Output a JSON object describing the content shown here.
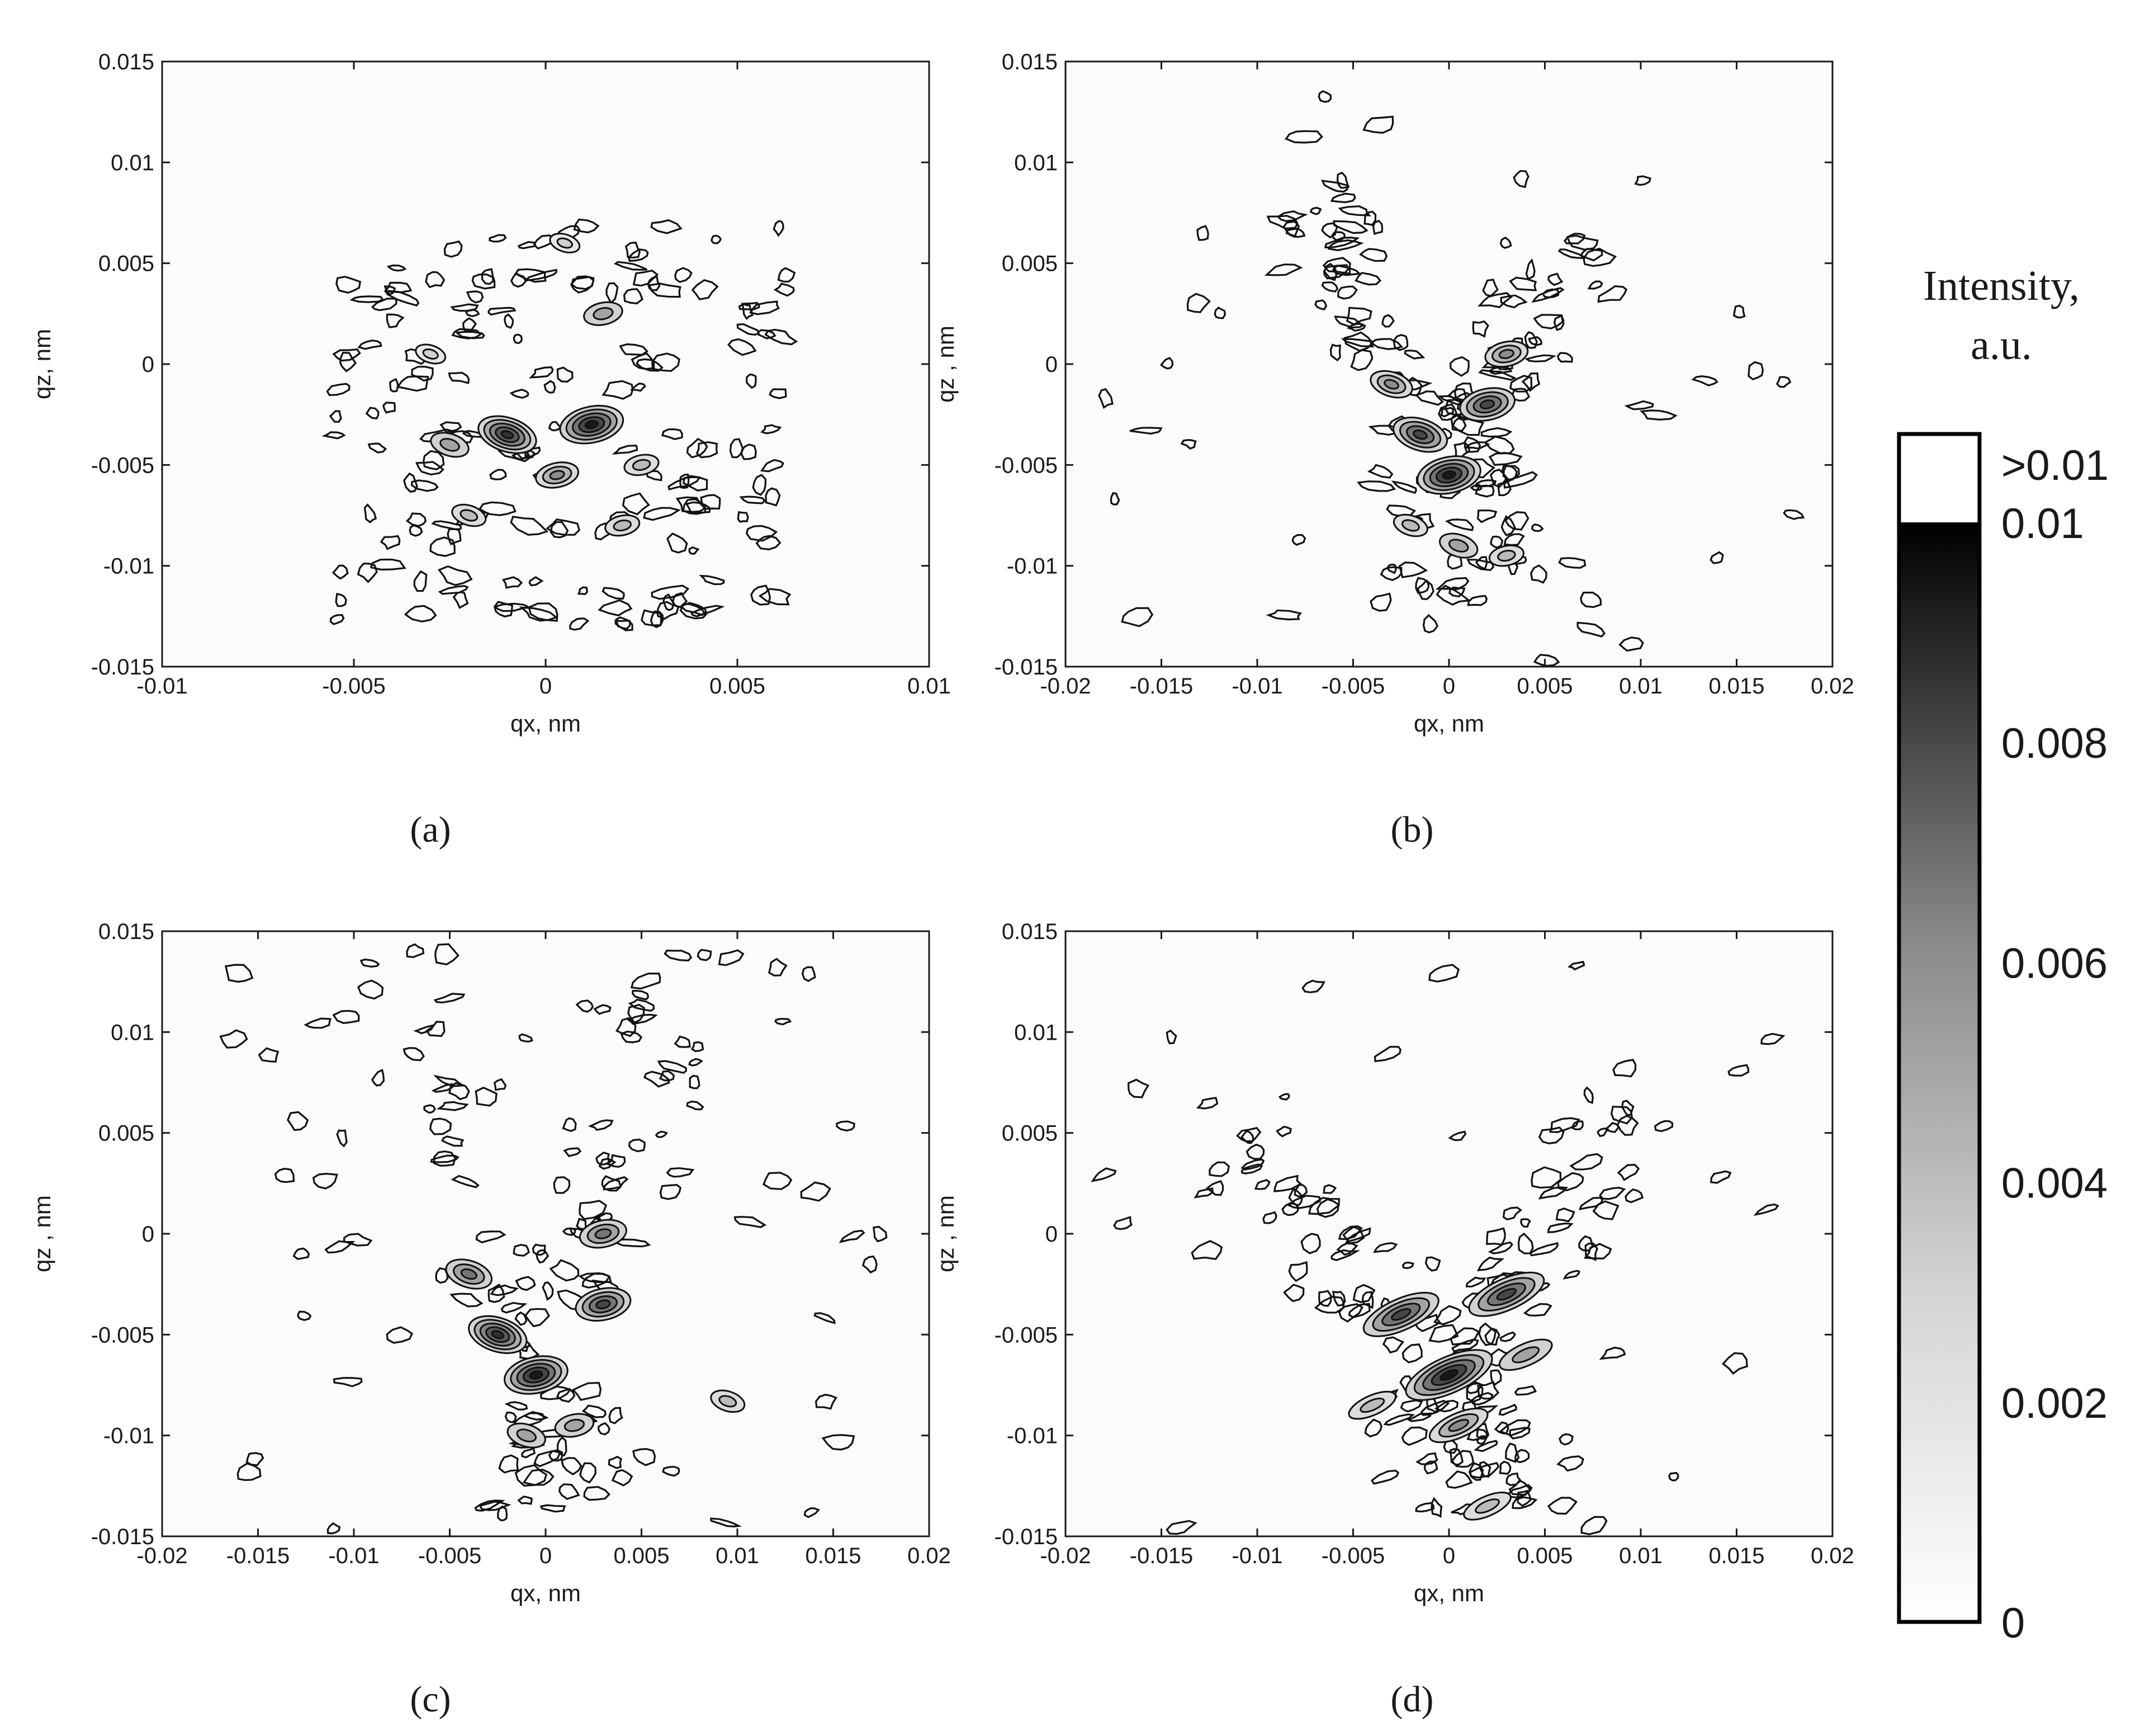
{
  "chart_data": [
    {
      "type": "contour",
      "panel_label": "(a)",
      "xlabel": "qx, nm",
      "ylabel": "qz, nm",
      "xlim": [
        -0.01,
        0.01
      ],
      "ylim": [
        -0.015,
        0.015
      ],
      "x_ticks": [
        "-0.01",
        "-0.005",
        "0",
        "0.005",
        "0.01"
      ],
      "y_ticks": [
        "-0.015",
        "-0.01",
        "-0.005",
        "0",
        "0.005",
        "0.01",
        "0.015"
      ],
      "grid": false,
      "pattern": "diffuse cloud centred near (0.001, -0.004), strongest intensity near qx 0.001, qz -0.003",
      "peaks": [
        {
          "x": 0.0012,
          "y": -0.003,
          "intensity": 0.01
        },
        {
          "x": -0.001,
          "y": -0.0035,
          "intensity": 0.009
        },
        {
          "x": 0.0003,
          "y": -0.0055,
          "intensity": 0.005
        },
        {
          "x": -0.0025,
          "y": -0.004,
          "intensity": 0.004
        },
        {
          "x": 0.0015,
          "y": 0.0025,
          "intensity": 0.004
        },
        {
          "x": -0.002,
          "y": -0.0075,
          "intensity": 0.003
        },
        {
          "x": 0.002,
          "y": -0.008,
          "intensity": 0.003
        },
        {
          "x": -0.003,
          "y": 0.0005,
          "intensity": 0.002
        },
        {
          "x": 0.0025,
          "y": -0.005,
          "intensity": 0.003
        },
        {
          "x": 0.0005,
          "y": 0.006,
          "intensity": 0.002
        }
      ]
    },
    {
      "type": "contour",
      "panel_label": "(b)",
      "xlabel": "qx, nm",
      "ylabel": "qz , nm",
      "xlim": [
        -0.02,
        0.02
      ],
      "ylim": [
        -0.015,
        0.015
      ],
      "x_ticks": [
        "-0.02",
        "-0.015",
        "-0.01",
        "-0.005",
        "0",
        "0.005",
        "0.01",
        "0.015",
        "0.02"
      ],
      "y_ticks": [
        "-0.015",
        "-0.01",
        "-0.005",
        "0",
        "0.005",
        "0.01",
        "0.015"
      ],
      "grid": false,
      "pattern": "V-shaped streaks with apex near (0, -0.005)",
      "apex": {
        "x": 0.0,
        "y": -0.005
      },
      "arm_top_left": {
        "x": -0.004,
        "y": 0.002
      },
      "arm_top_right": {
        "x": 0.003,
        "y": 0.001
      },
      "peaks": [
        {
          "x": 0.0,
          "y": -0.0055,
          "intensity": 0.01
        },
        {
          "x": -0.0015,
          "y": -0.0035,
          "intensity": 0.008
        },
        {
          "x": 0.002,
          "y": -0.002,
          "intensity": 0.008
        },
        {
          "x": -0.003,
          "y": -0.001,
          "intensity": 0.005
        },
        {
          "x": 0.003,
          "y": 0.0005,
          "intensity": 0.005
        },
        {
          "x": 0.0005,
          "y": -0.009,
          "intensity": 0.004
        },
        {
          "x": 0.003,
          "y": -0.0095,
          "intensity": 0.003
        },
        {
          "x": -0.002,
          "y": -0.008,
          "intensity": 0.003
        }
      ]
    },
    {
      "type": "contour",
      "panel_label": "(c)",
      "xlabel": "qx, nm",
      "ylabel": "qz , nm",
      "xlim": [
        -0.02,
        0.02
      ],
      "ylim": [
        -0.015,
        0.015
      ],
      "x_ticks": [
        "-0.02",
        "-0.015",
        "-0.01",
        "-0.005",
        "0",
        "0.005",
        "0.01",
        "0.015",
        "0.02"
      ],
      "y_ticks": [
        "-0.015",
        "-0.01",
        "-0.005",
        "0",
        "0.005",
        "0.01",
        "0.015"
      ],
      "grid": false,
      "pattern": "narrow V-shaped streaks with apex near (0, -0.007)",
      "apex": {
        "x": 0.0,
        "y": -0.007
      },
      "arm_top_left": {
        "x": -0.006,
        "y": 0.01
      },
      "arm_top_right": {
        "x": 0.004,
        "y": 0.004
      },
      "peaks": [
        {
          "x": -0.0005,
          "y": -0.007,
          "intensity": 0.01
        },
        {
          "x": -0.0025,
          "y": -0.005,
          "intensity": 0.009
        },
        {
          "x": 0.003,
          "y": -0.0035,
          "intensity": 0.008
        },
        {
          "x": -0.004,
          "y": -0.002,
          "intensity": 0.006
        },
        {
          "x": 0.003,
          "y": 0.0,
          "intensity": 0.006
        },
        {
          "x": -0.001,
          "y": -0.01,
          "intensity": 0.004
        },
        {
          "x": 0.0015,
          "y": -0.0095,
          "intensity": 0.004
        },
        {
          "x": 0.0095,
          "y": -0.0083,
          "intensity": 0.003
        }
      ]
    },
    {
      "type": "contour",
      "panel_label": "(d)",
      "xlabel": "qx, nm",
      "ylabel": "qz , nm",
      "xlim": [
        -0.02,
        0.02
      ],
      "ylim": [
        -0.015,
        0.015
      ],
      "x_ticks": [
        "-0.02",
        "-0.015",
        "-0.01",
        "-0.005",
        "0",
        "0.005",
        "0.01",
        "0.015",
        "0.02"
      ],
      "y_ticks": [
        "-0.015",
        "-0.01",
        "-0.005",
        "0",
        "0.005",
        "0.01",
        "0.015"
      ],
      "grid": false,
      "pattern": "V-shaped streaks with apex near (0, -0.007) and tilted satellite streaks",
      "apex": {
        "x": 0.0,
        "y": -0.007
      },
      "arm_top_left": {
        "x": -0.006,
        "y": -0.001
      },
      "arm_top_right": {
        "x": 0.005,
        "y": 0.0
      },
      "peaks": [
        {
          "x": 0.0,
          "y": -0.007,
          "intensity": 0.01
        },
        {
          "x": -0.0025,
          "y": -0.004,
          "intensity": 0.008
        },
        {
          "x": 0.003,
          "y": -0.003,
          "intensity": 0.008
        },
        {
          "x": 0.0005,
          "y": -0.0095,
          "intensity": 0.005
        },
        {
          "x": 0.004,
          "y": -0.006,
          "intensity": 0.004
        },
        {
          "x": -0.004,
          "y": -0.0085,
          "intensity": 0.003
        },
        {
          "x": 0.002,
          "y": -0.0135,
          "intensity": 0.003
        }
      ]
    }
  ],
  "colorbar": {
    "title_line1": "Intensity,",
    "title_line2": "a.u.",
    "ticks": [
      "0",
      "0.002",
      "0.004",
      "0.006",
      "0.008",
      "0.01"
    ],
    "over_label": ">0.01",
    "range": [
      0,
      0.01
    ],
    "colormap": "white-to-black grayscale",
    "low_color": "#ffffff",
    "high_color": "#000000"
  }
}
